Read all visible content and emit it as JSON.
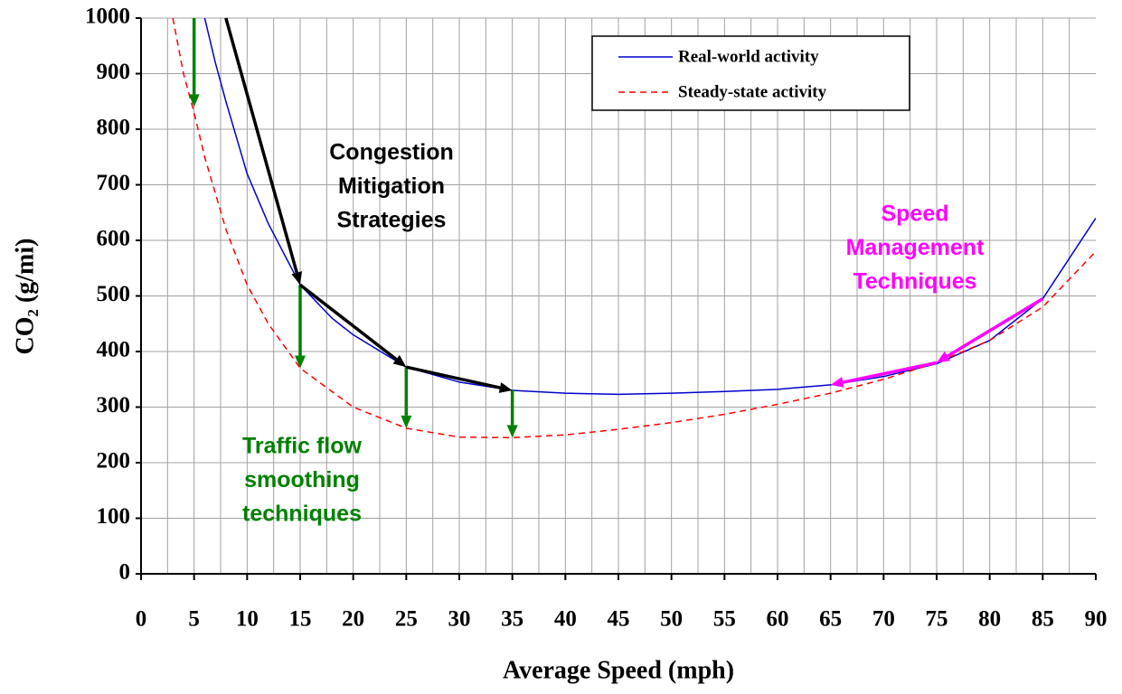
{
  "chart_data": {
    "type": "line",
    "x_label": "Average Speed (mph)",
    "y_label": "CO₂ (g/mi)",
    "xlim": [
      0,
      90
    ],
    "ylim": [
      0,
      1000
    ],
    "xticks": [
      0,
      5,
      10,
      15,
      20,
      25,
      30,
      35,
      40,
      45,
      50,
      55,
      60,
      65,
      70,
      75,
      80,
      85,
      90
    ],
    "yticks": [
      0,
      100,
      200,
      300,
      400,
      500,
      600,
      700,
      800,
      900,
      1000
    ],
    "xgrid": [
      2.5,
      5,
      7.5,
      10,
      12.5,
      15,
      17.5,
      20,
      22.5,
      25,
      27.5,
      30,
      32.5,
      35,
      37.5,
      40,
      42.5,
      45,
      47.5,
      50,
      52.5,
      55,
      57.5,
      60,
      62.5,
      65,
      67.5,
      70,
      72.5,
      75,
      77.5,
      80,
      82.5,
      85,
      87.5
    ],
    "grid": true,
    "legend": "top-right",
    "series": [
      {
        "name": "Real-world activity",
        "color": "#0000cc",
        "dash": false,
        "x": [
          6,
          7,
          8,
          10,
          12,
          15,
          18,
          20,
          25,
          30,
          35,
          40,
          45,
          50,
          55,
          60,
          65,
          70,
          75,
          80,
          85,
          90
        ],
        "values": [
          1000,
          920,
          850,
          720,
          630,
          520,
          460,
          430,
          372,
          345,
          330,
          325,
          323,
          325,
          328,
          332,
          340,
          355,
          378,
          420,
          495,
          640
        ]
      },
      {
        "name": "Steady-state activity",
        "color": "#ff0000",
        "dash": true,
        "x": [
          3,
          4,
          5,
          6,
          8,
          10,
          12,
          15,
          20,
          25,
          30,
          35,
          40,
          45,
          50,
          55,
          60,
          65,
          70,
          75,
          80,
          85,
          90
        ],
        "values": [
          1000,
          900,
          830,
          750,
          620,
          520,
          450,
          370,
          300,
          262,
          246,
          245,
          250,
          260,
          272,
          287,
          305,
          325,
          350,
          380,
          420,
          480,
          580
        ]
      }
    ],
    "annotations": [
      {
        "lines": [
          "Congestion",
          "Mitigation",
          "Strategies"
        ],
        "color": "#000000"
      },
      {
        "lines": [
          "Traffic flow",
          "smoothing",
          "techniques"
        ],
        "color": "#008000"
      },
      {
        "lines": [
          "Speed",
          "Management",
          "Techniques"
        ],
        "color": "#ff00ff"
      }
    ],
    "arrows": [
      {
        "from": [
          5,
          1000
        ],
        "to": [
          5,
          840
        ],
        "color": "#008000"
      },
      {
        "from": [
          15,
          520
        ],
        "to": [
          15,
          370
        ],
        "color": "#008000"
      },
      {
        "from": [
          25,
          372
        ],
        "to": [
          25,
          262
        ],
        "color": "#008000"
      },
      {
        "from": [
          35,
          330
        ],
        "to": [
          35,
          245
        ],
        "color": "#008000"
      },
      {
        "from": [
          8,
          1000
        ],
        "to": [
          15,
          520
        ],
        "color": "#000000"
      },
      {
        "from": [
          15,
          520
        ],
        "to": [
          25,
          372
        ],
        "color": "#000000"
      },
      {
        "from": [
          25,
          372
        ],
        "to": [
          35,
          330
        ],
        "color": "#000000"
      },
      {
        "from": [
          85,
          495
        ],
        "to": [
          75,
          380
        ],
        "color": "#ff00ff"
      },
      {
        "from": [
          75,
          380
        ],
        "to": [
          65,
          340
        ],
        "color": "#ff00ff"
      }
    ]
  }
}
